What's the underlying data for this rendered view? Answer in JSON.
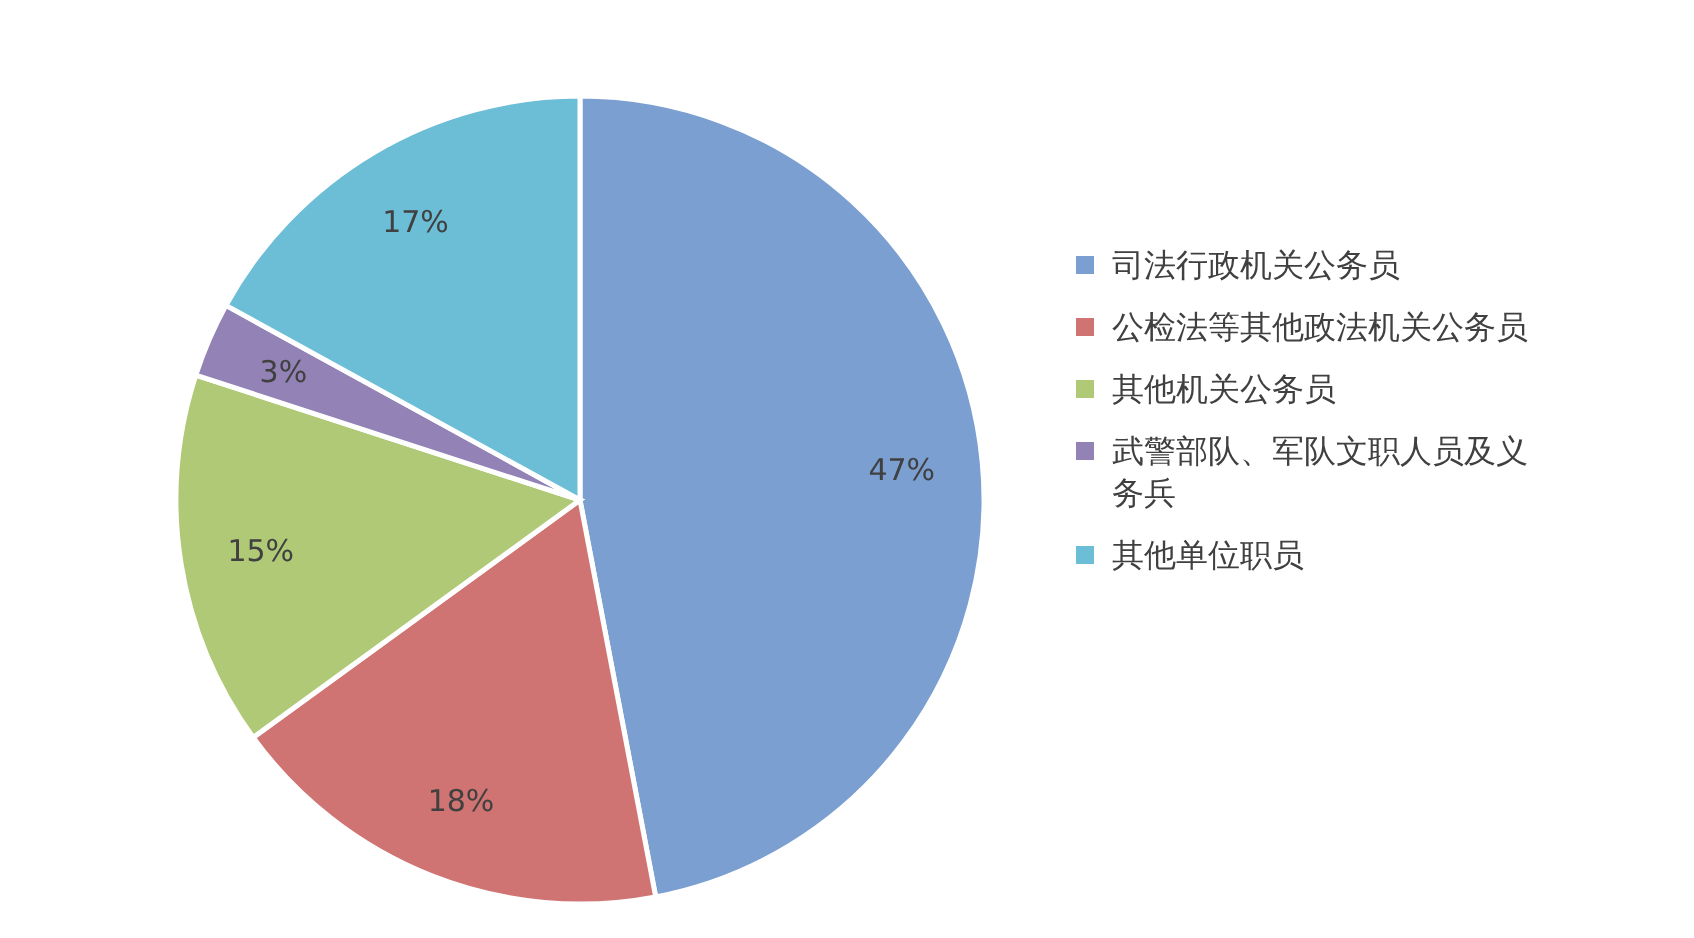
{
  "chart_data": {
    "type": "pie",
    "categories": [
      "司法行政机关公务员",
      "公检法等其他政法机关公务员",
      "其他机关公务员",
      "武警部队、军队文职人员及义务兵",
      "其他单位职员"
    ],
    "values": [
      47,
      18,
      15,
      3,
      17
    ],
    "colors": [
      "#7b9fd0",
      "#cf7472",
      "#afc976",
      "#9382b6",
      "#6cbdd6"
    ],
    "value_labels": [
      "47%",
      "18%",
      "15%",
      "3%",
      "17%"
    ],
    "legend": "right"
  }
}
